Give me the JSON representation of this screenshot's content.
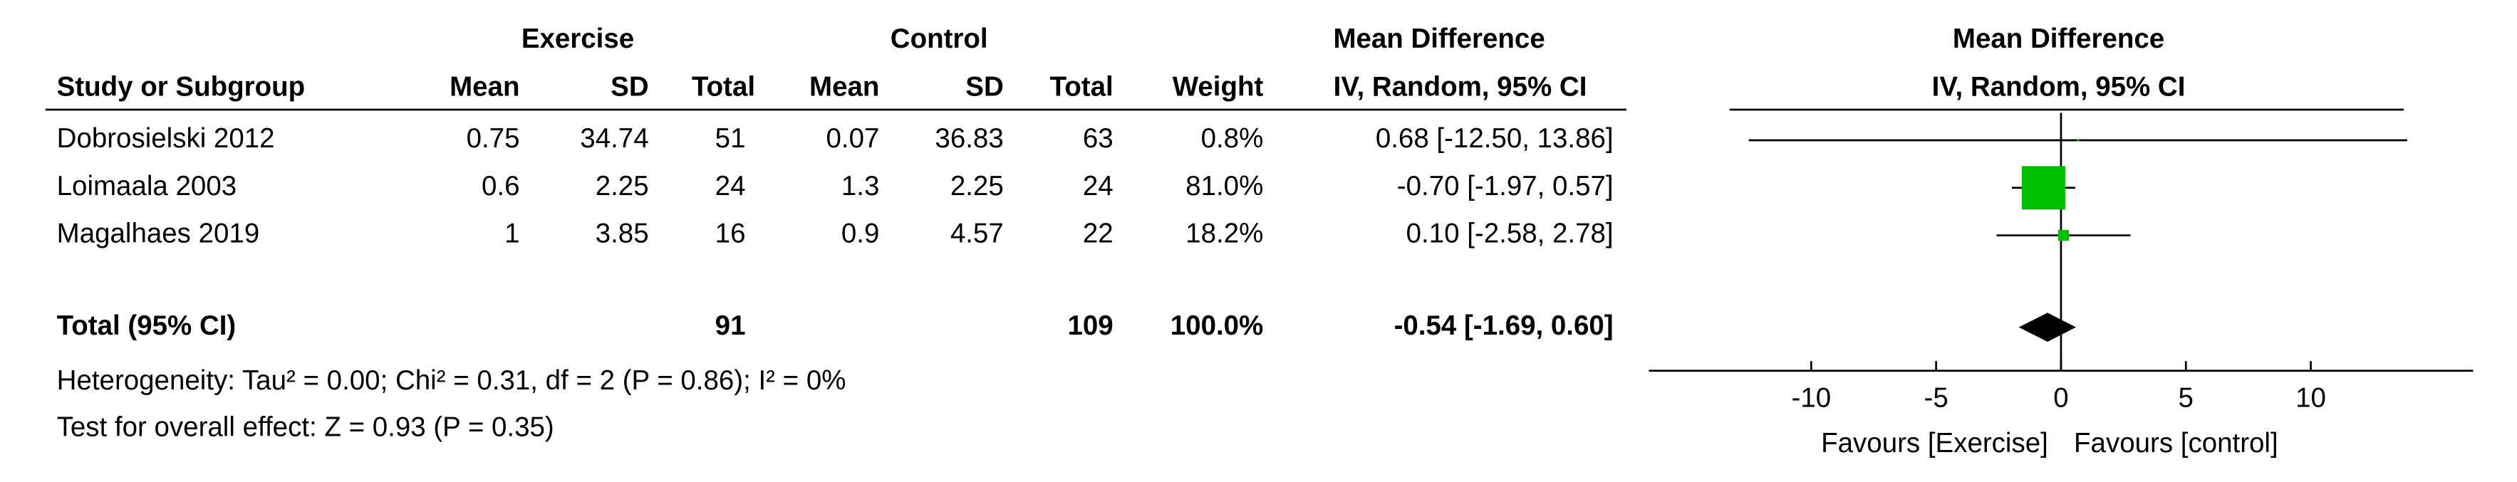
{
  "chart_data": {
    "type": "forest",
    "group_headers": {
      "experimental": "Exercise",
      "control": "Control",
      "effect": "Mean Difference",
      "plot": "Mean Difference"
    },
    "columns": {
      "study": "Study or Subgroup",
      "mean": "Mean",
      "sd": "SD",
      "total": "Total",
      "weight": "Weight",
      "effect": "IV, Random, 95% CI",
      "plot": "IV, Random, 95% CI"
    },
    "studies": [
      {
        "name": "Dobrosielski 2012",
        "exp_mean": 0.75,
        "exp_sd": 34.74,
        "exp_total": 51,
        "ctl_mean": 0.07,
        "ctl_sd": 36.83,
        "ctl_total": 63,
        "weight": 0.8,
        "weight_label": "0.8%",
        "md": 0.68,
        "ci_low": -12.5,
        "ci_high": 13.86,
        "ci_label": "0.68 [-12.50, 13.86]"
      },
      {
        "name": "Loimaala 2003",
        "exp_mean": 0.6,
        "exp_sd": 2.25,
        "exp_total": 24,
        "ctl_mean": 1.3,
        "ctl_sd": 2.25,
        "ctl_total": 24,
        "weight": 81,
        "weight_label": "81.0%",
        "md": -0.7,
        "ci_low": -1.97,
        "ci_high": 0.57,
        "ci_label": "-0.70 [-1.97, 0.57]"
      },
      {
        "name": "Magalhaes 2019",
        "exp_mean": 1,
        "exp_sd": 3.85,
        "exp_total": 16,
        "ctl_mean": 0.9,
        "ctl_sd": 4.57,
        "ctl_total": 22,
        "weight": 18.2,
        "weight_label": "18.2%",
        "md": 0.1,
        "ci_low": -2.58,
        "ci_high": 2.78,
        "ci_label": "0.10 [-2.58, 2.78]"
      }
    ],
    "total": {
      "name": "Total (95% CI)",
      "exp_total": 91,
      "ctl_total": 109,
      "weight_label": "100.0%",
      "md": -0.54,
      "ci_low": -1.69,
      "ci_high": 0.6,
      "ci_label": "-0.54 [-1.69, 0.60]"
    },
    "heterogeneity": "Heterogeneity: Tau² = 0.00; Chi² = 0.31, df = 2 (P = 0.86); I² = 0%",
    "overall_effect": "Test for overall effect: Z = 0.93 (P = 0.35)",
    "xlim": [
      -16.5,
      16.5
    ],
    "xticks": [
      -10,
      -5,
      0,
      5,
      10
    ],
    "xlabel_left": "Favours [Exercise]",
    "xlabel_right": "Favours [control]",
    "box_color": "#00c000",
    "diamond_color": "#000000"
  }
}
